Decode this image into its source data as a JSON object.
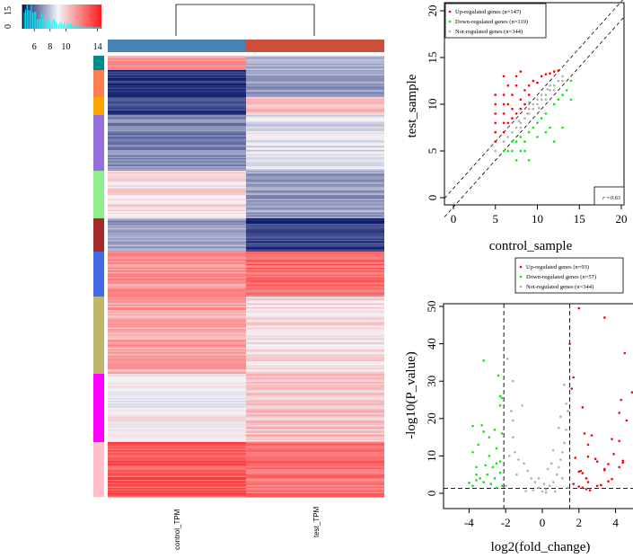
{
  "chart_data": [
    {
      "type": "heatmap",
      "columns": [
        "control_TPM",
        "test_TPM"
      ],
      "column_colors": [
        "#4682b4",
        "#cd4f39"
      ],
      "color_key": {
        "colors": [
          "#0b1a6e",
          "#f4f4f8",
          "#ff1a1a"
        ],
        "histogram_color": "#00ffff",
        "x_ticks": [
          "6",
          "8",
          "10",
          "14"
        ],
        "y_ticks": [
          "0",
          "15"
        ],
        "range": [
          4.5,
          14.5
        ]
      },
      "row_clusters": [
        {
          "color": "#008b8b",
          "control": 0.72,
          "test": 0.35
        },
        {
          "color": "#ff7f50",
          "control": 0.05,
          "test": 0.3
        },
        {
          "color": "#ffa500",
          "control": 0.1,
          "test": 0.63
        },
        {
          "color": "#9370db",
          "control": 0.25,
          "test": 0.45
        },
        {
          "color": "#90ee90",
          "control": 0.56,
          "test": 0.3
        },
        {
          "color": "#a52a2a",
          "control": 0.3,
          "test": 0.08
        },
        {
          "color": "#4169e1",
          "control": 0.72,
          "test": 0.82
        },
        {
          "color": "#bdb76b",
          "control": 0.68,
          "test": 0.55
        },
        {
          "color": "#ff00ff",
          "control": 0.5,
          "test": 0.62
        },
        {
          "color": "#ffc0cb",
          "control": 0.86,
          "test": 0.8
        }
      ]
    },
    {
      "type": "scatter",
      "xlabel": "control_sample",
      "ylabel": "test_sample",
      "xlim": [
        0,
        20
      ],
      "ylim": [
        0,
        20
      ],
      "x_ticks": [
        "0",
        "5",
        "10",
        "15",
        "20"
      ],
      "y_ticks": [
        "0",
        "5",
        "10",
        "15",
        "20"
      ],
      "legend_position": "top-left",
      "annotation": "r =0.63",
      "diagonal_lines": "dashed fold-change bounds",
      "series": [
        {
          "name": "Up-regulated genes (n=147)",
          "color": "#ff0000",
          "points": [
            [
              5,
              6
            ],
            [
              5,
              7
            ],
            [
              5,
              8
            ],
            [
              5,
              9
            ],
            [
              5,
              10
            ],
            [
              5,
              11
            ],
            [
              6,
              7
            ],
            [
              6,
              8
            ],
            [
              6,
              9
            ],
            [
              6,
              10
            ],
            [
              6,
              11
            ],
            [
              6,
              13
            ],
            [
              6.5,
              8
            ],
            [
              6.5,
              10
            ],
            [
              6.5,
              12
            ],
            [
              7,
              8.5
            ],
            [
              7,
              9.5
            ],
            [
              7,
              11
            ],
            [
              7.5,
              9
            ],
            [
              7.5,
              12
            ],
            [
              7.5,
              13
            ],
            [
              8,
              9.5
            ],
            [
              8,
              10.5
            ],
            [
              8,
              13.5
            ],
            [
              8.5,
              10
            ],
            [
              8.5,
              11.5
            ],
            [
              9,
              11
            ],
            [
              9,
              12
            ],
            [
              9.5,
              12.5
            ],
            [
              10,
              12.3
            ],
            [
              10.5,
              13
            ],
            [
              11,
              13.2
            ],
            [
              11.5,
              13.3
            ],
            [
              12,
              13.5
            ],
            [
              12.5,
              13.6
            ]
          ]
        },
        {
          "name": "Down-regulated genes (n=119)",
          "color": "#00ee00",
          "points": [
            [
              6,
              5
            ],
            [
              6.5,
              5
            ],
            [
              7,
              5
            ],
            [
              7.5,
              4
            ],
            [
              8,
              5
            ],
            [
              8.5,
              5
            ],
            [
              9,
              4
            ],
            [
              7,
              6
            ],
            [
              7.5,
              6
            ],
            [
              8,
              6.5
            ],
            [
              8.5,
              6
            ],
            [
              9,
              7
            ],
            [
              9.5,
              7.5
            ],
            [
              10,
              8
            ],
            [
              10,
              6.5
            ],
            [
              10.5,
              8.5
            ],
            [
              11,
              9
            ],
            [
              11,
              7
            ],
            [
              11.5,
              7.5
            ],
            [
              12,
              10
            ],
            [
              12,
              6
            ],
            [
              12.5,
              10.5
            ],
            [
              13,
              11
            ],
            [
              13,
              7.5
            ],
            [
              13.5,
              11.5
            ],
            [
              14,
              12.5
            ],
            [
              14,
              10.5
            ]
          ]
        },
        {
          "name": "Not-regulated genes (n=344)",
          "color": "#b0b0b0",
          "points": [
            [
              5,
              5
            ],
            [
              6,
              6
            ],
            [
              6.5,
              6.5
            ],
            [
              7,
              7
            ],
            [
              7.5,
              7.5
            ],
            [
              8,
              8
            ],
            [
              8.5,
              8.5
            ],
            [
              8,
              7.5
            ],
            [
              9,
              9
            ],
            [
              9,
              9.5
            ],
            [
              9.5,
              9.5
            ],
            [
              9.5,
              10
            ],
            [
              10,
              10
            ],
            [
              10,
              10.5
            ],
            [
              10.5,
              10.5
            ],
            [
              10.5,
              11
            ],
            [
              11,
              11
            ],
            [
              11,
              10.5
            ],
            [
              11.5,
              11.5
            ],
            [
              11.5,
              12
            ],
            [
              12,
              12
            ],
            [
              12,
              11.5
            ],
            [
              12.5,
              12.5
            ],
            [
              13,
              12.5
            ],
            [
              13,
              13
            ],
            [
              9,
              10.2
            ],
            [
              10.2,
              9.6
            ],
            [
              11.2,
              11.6
            ],
            [
              8.8,
              9
            ],
            [
              7.8,
              8.2
            ]
          ]
        }
      ]
    },
    {
      "type": "scatter",
      "xlabel": "log2(fold_change)",
      "ylabel": "-log10(P_value)",
      "xlim": [
        -5.5,
        5
      ],
      "ylim": [
        -1,
        52
      ],
      "x_ticks": [
        "-4",
        "-2",
        "0",
        "2",
        "4"
      ],
      "y_ticks": [
        "0",
        "10",
        "20",
        "30",
        "40",
        "50"
      ],
      "legend_position": "top-right",
      "threshold_lines": {
        "log2fc": [
          -2.1,
          1.5
        ],
        "neg_log10_p": 1.3
      },
      "series": [
        {
          "name": "Up-regulated genes (n=93)",
          "color": "#ff0000",
          "points": [
            [
              2,
              49.5
            ],
            [
              3.4,
              47
            ],
            [
              4.5,
              37.5
            ],
            [
              1.5,
              40
            ],
            [
              1.7,
              31
            ],
            [
              1.6,
              28
            ],
            [
              4.9,
              27
            ],
            [
              2.2,
              23
            ],
            [
              4.3,
              25
            ],
            [
              4.2,
              21.5
            ],
            [
              4.6,
              19.5
            ],
            [
              2.3,
              16
            ],
            [
              2.7,
              15.5
            ],
            [
              3.8,
              14.5
            ],
            [
              4.2,
              14
            ],
            [
              2.5,
              13
            ],
            [
              3.9,
              10.5
            ],
            [
              1.8,
              9.5
            ],
            [
              2.9,
              9.2
            ],
            [
              2.5,
              9.8
            ],
            [
              4.4,
              8.7
            ],
            [
              4.4,
              8.2
            ],
            [
              3.6,
              7.8
            ],
            [
              3,
              8.5
            ],
            [
              3.4,
              6.5
            ],
            [
              3.4,
              6.2
            ],
            [
              4.2,
              7
            ],
            [
              2.1,
              6
            ],
            [
              2,
              5.8
            ],
            [
              2.2,
              5.4
            ],
            [
              2.4,
              4
            ],
            [
              2.5,
              3
            ],
            [
              1.7,
              2.5
            ],
            [
              2,
              1.8
            ],
            [
              2.2,
              1.5
            ],
            [
              2.4,
              1.1
            ],
            [
              2.6,
              0.8
            ],
            [
              3,
              2
            ],
            [
              3.2,
              2.2
            ],
            [
              3.6,
              3.2
            ],
            [
              3.8,
              3.8
            ]
          ]
        },
        {
          "name": "Down-regulated genes (n=57)",
          "color": "#00ee00",
          "points": [
            [
              -3.2,
              35.5
            ],
            [
              -2.4,
              31.5
            ],
            [
              -2.3,
              26
            ],
            [
              -2.2,
              25.5
            ],
            [
              -2.3,
              23.5
            ],
            [
              -3.8,
              18
            ],
            [
              -3.3,
              18.2
            ],
            [
              -2.6,
              17
            ],
            [
              -3.2,
              16.5
            ],
            [
              -2.2,
              16
            ],
            [
              -2.9,
              15
            ],
            [
              -3.5,
              13
            ],
            [
              -2.5,
              12
            ],
            [
              -3.8,
              11
            ],
            [
              -2.9,
              10
            ],
            [
              -2.3,
              8.5
            ],
            [
              -2.5,
              8
            ],
            [
              -3.1,
              7.5
            ],
            [
              -3.6,
              7
            ],
            [
              -2.7,
              7
            ],
            [
              -2.3,
              5.5
            ],
            [
              -3.6,
              5
            ],
            [
              -3,
              5
            ],
            [
              -2.6,
              4
            ],
            [
              -3.4,
              4
            ],
            [
              -4,
              2.8
            ],
            [
              -3.8,
              2
            ],
            [
              -3.2,
              3
            ],
            [
              -2.8,
              2.5
            ],
            [
              -2.2,
              2
            ],
            [
              -3.6,
              3.5
            ],
            [
              -2.5,
              1.5
            ]
          ]
        },
        {
          "name": "Not-regulated genes (n=344)",
          "color": "#b0b0b0",
          "points": [
            [
              -1.9,
              36
            ],
            [
              -1.6,
              30
            ],
            [
              -1.1,
              23.5
            ],
            [
              -1.6,
              19.5
            ],
            [
              -1.7,
              22
            ],
            [
              -1.6,
              15
            ],
            [
              -1.5,
              11
            ],
            [
              -1.8,
              10
            ],
            [
              -1.3,
              9
            ],
            [
              -1,
              8
            ],
            [
              -0.8,
              6
            ],
            [
              -0.6,
              4
            ],
            [
              -0.4,
              3
            ],
            [
              -0.2,
              1.5
            ],
            [
              0,
              0.5
            ],
            [
              0.2,
              1
            ],
            [
              0.4,
              2
            ],
            [
              0.6,
              3
            ],
            [
              0.8,
              5
            ],
            [
              0.9,
              7
            ],
            [
              1,
              9
            ],
            [
              1.1,
              11
            ],
            [
              1.2,
              13.5
            ],
            [
              1.3,
              17
            ],
            [
              0.9,
              17.5
            ],
            [
              1.4,
              22
            ],
            [
              1.3,
              24
            ],
            [
              1.2,
              29
            ],
            [
              1,
              20.5
            ],
            [
              0.6,
              11.5
            ],
            [
              0.5,
              8
            ],
            [
              0.3,
              6.5
            ],
            [
              -0.2,
              4
            ],
            [
              0.1,
              2.5
            ],
            [
              0.7,
              0.5
            ],
            [
              1.4,
              1.5
            ],
            [
              -1.4,
              5
            ],
            [
              -2,
              2
            ],
            [
              -0.9,
              0.6
            ],
            [
              1.1,
              4
            ],
            [
              0.2,
              0.2
            ],
            [
              -0.5,
              0.8
            ]
          ]
        }
      ]
    }
  ]
}
